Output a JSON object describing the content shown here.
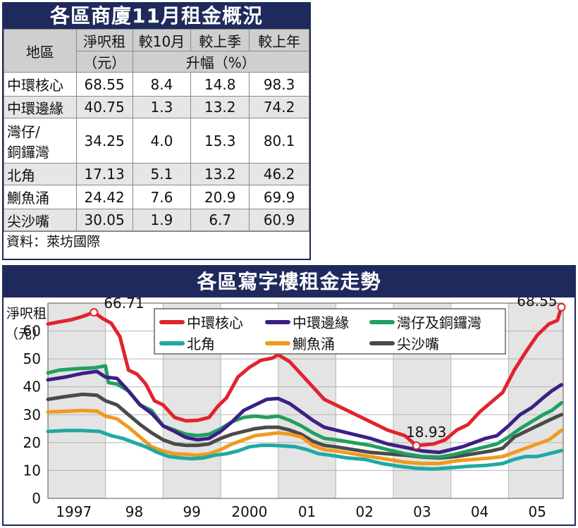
{
  "table": {
    "title": "各區商廈11月租金概況",
    "headers": {
      "area": "地區",
      "rent_line1": "淨呎租",
      "rent_line2": "（元）",
      "vs_oct": "較10月",
      "vs_quarter": "較上季",
      "vs_year": "較上年",
      "increase": "升幅（%）"
    },
    "rows": [
      {
        "area": "中環核心",
        "rent": "68.55",
        "oct": "8.4",
        "quarter": "14.8",
        "year": "98.3"
      },
      {
        "area": "中環邊緣",
        "rent": "40.75",
        "oct": "1.3",
        "quarter": "13.2",
        "year": "74.2"
      },
      {
        "area": "灣仔/",
        "area2": "銅鑼灣",
        "rent": "34.25",
        "oct": "4.0",
        "quarter": "15.3",
        "year": "80.1"
      },
      {
        "area": "北角",
        "rent": "17.13",
        "oct": "5.1",
        "quarter": "13.2",
        "year": "46.2"
      },
      {
        "area": "鰂魚涌",
        "rent": "24.42",
        "oct": "7.6",
        "quarter": "20.9",
        "year": "69.9"
      },
      {
        "area": "尖沙嘴",
        "rent": "30.05",
        "oct": "1.9",
        "quarter": "6.7",
        "year": "60.9"
      }
    ],
    "source": "資料：萊坊國際"
  },
  "chart_data": {
    "type": "line",
    "title": "各區寫字樓租金走勢",
    "ylabel": "淨呎租",
    "yunit": "（元）",
    "ylim": [
      0,
      70
    ],
    "yticks": [
      0,
      10,
      20,
      30,
      40,
      50,
      60
    ],
    "xlim": [
      1997,
      2005.95
    ],
    "xticks": [
      {
        "x": 1997.45,
        "label": "1997"
      },
      {
        "x": 1998.5,
        "label": "98"
      },
      {
        "x": 1999.5,
        "label": "99"
      },
      {
        "x": 2000.5,
        "label": "2000"
      },
      {
        "x": 2001.5,
        "label": "01"
      },
      {
        "x": 2002.5,
        "label": "02"
      },
      {
        "x": 2003.5,
        "label": "03"
      },
      {
        "x": 2004.5,
        "label": "04"
      },
      {
        "x": 2005.5,
        "label": "05"
      }
    ],
    "grid": true,
    "legend_position": "top",
    "annotations": [
      {
        "text": "66.71",
        "x": 1997.8,
        "y": 66.71,
        "series": 0
      },
      {
        "text": "18.93",
        "x": 2003.4,
        "y": 18.93,
        "series": 0
      },
      {
        "text": "68.55",
        "x": 2005.92,
        "y": 68.55,
        "series": 0
      }
    ],
    "series": [
      {
        "name": "中環核心",
        "color": "#e1232e",
        "points": [
          [
            1997.0,
            62.5
          ],
          [
            1997.2,
            63.3
          ],
          [
            1997.4,
            64.0
          ],
          [
            1997.6,
            65.2
          ],
          [
            1997.8,
            66.71
          ],
          [
            1997.95,
            64.5
          ],
          [
            1998.1,
            62.8
          ],
          [
            1998.25,
            58.0
          ],
          [
            1998.4,
            46.0
          ],
          [
            1998.55,
            44.5
          ],
          [
            1998.7,
            41.0
          ],
          [
            1998.85,
            35.0
          ],
          [
            1999.0,
            33.5
          ],
          [
            1999.2,
            29.0
          ],
          [
            1999.4,
            27.8
          ],
          [
            1999.6,
            28.0
          ],
          [
            1999.8,
            29.0
          ],
          [
            1999.95,
            33.0
          ],
          [
            2000.1,
            36.0
          ],
          [
            2000.3,
            43.5
          ],
          [
            2000.5,
            47.0
          ],
          [
            2000.7,
            49.5
          ],
          [
            2000.9,
            50.3
          ],
          [
            2001.0,
            51.5
          ],
          [
            2001.2,
            49.0
          ],
          [
            2001.4,
            44.5
          ],
          [
            2001.6,
            40.0
          ],
          [
            2001.8,
            35.5
          ],
          [
            2002.0,
            33.5
          ],
          [
            2002.3,
            30.5
          ],
          [
            2002.6,
            27.5
          ],
          [
            2002.9,
            24.5
          ],
          [
            2003.2,
            22.5
          ],
          [
            2003.4,
            18.93
          ],
          [
            2003.7,
            19.5
          ],
          [
            2003.9,
            21.0
          ],
          [
            2004.1,
            24.5
          ],
          [
            2004.3,
            26.5
          ],
          [
            2004.5,
            31.0
          ],
          [
            2004.7,
            34.5
          ],
          [
            2004.9,
            38.0
          ],
          [
            2005.1,
            46.0
          ],
          [
            2005.3,
            52.5
          ],
          [
            2005.5,
            58.5
          ],
          [
            2005.7,
            62.5
          ],
          [
            2005.85,
            63.8
          ],
          [
            2005.92,
            68.55
          ]
        ]
      },
      {
        "name": "中環邊緣",
        "color": "#3c1f86",
        "points": [
          [
            1997.0,
            42.5
          ],
          [
            1997.3,
            43.5
          ],
          [
            1997.6,
            44.8
          ],
          [
            1997.85,
            45.5
          ],
          [
            1998.0,
            43.5
          ],
          [
            1998.2,
            43.0
          ],
          [
            1998.4,
            38.5
          ],
          [
            1998.6,
            33.5
          ],
          [
            1998.8,
            30.5
          ],
          [
            1999.0,
            26.0
          ],
          [
            1999.2,
            24.0
          ],
          [
            1999.4,
            21.8
          ],
          [
            1999.6,
            21.0
          ],
          [
            1999.8,
            21.5
          ],
          [
            2000.0,
            24.0
          ],
          [
            2000.2,
            27.5
          ],
          [
            2000.4,
            31.5
          ],
          [
            2000.6,
            33.5
          ],
          [
            2000.8,
            35.5
          ],
          [
            2001.0,
            35.8
          ],
          [
            2001.2,
            34.0
          ],
          [
            2001.4,
            31.0
          ],
          [
            2001.6,
            28.0
          ],
          [
            2001.8,
            25.5
          ],
          [
            2002.0,
            24.5
          ],
          [
            2002.3,
            23.0
          ],
          [
            2002.6,
            21.5
          ],
          [
            2002.9,
            19.5
          ],
          [
            2003.2,
            18.3
          ],
          [
            2003.5,
            17.0
          ],
          [
            2003.8,
            16.5
          ],
          [
            2004.0,
            17.5
          ],
          [
            2004.2,
            18.5
          ],
          [
            2004.4,
            20.0
          ],
          [
            2004.6,
            21.5
          ],
          [
            2004.8,
            22.5
          ],
          [
            2005.0,
            26.0
          ],
          [
            2005.2,
            30.0
          ],
          [
            2005.4,
            32.5
          ],
          [
            2005.6,
            36.0
          ],
          [
            2005.75,
            38.5
          ],
          [
            2005.92,
            40.75
          ]
        ]
      },
      {
        "name": "灣仔及銅鑼灣",
        "color": "#20a060",
        "points": [
          [
            1997.0,
            45.0
          ],
          [
            1997.2,
            46.0
          ],
          [
            1997.5,
            46.5
          ],
          [
            1997.8,
            46.8
          ],
          [
            1998.0,
            47.5
          ],
          [
            1998.05,
            41.5
          ],
          [
            1998.2,
            41.0
          ],
          [
            1998.4,
            38.5
          ],
          [
            1998.6,
            33.5
          ],
          [
            1998.8,
            31.5
          ],
          [
            1999.0,
            26.0
          ],
          [
            1999.2,
            24.5
          ],
          [
            1999.4,
            23.0
          ],
          [
            1999.6,
            22.5
          ],
          [
            1999.8,
            23.0
          ],
          [
            2000.0,
            25.0
          ],
          [
            2000.2,
            27.5
          ],
          [
            2000.4,
            29.0
          ],
          [
            2000.6,
            29.5
          ],
          [
            2000.8,
            29.0
          ],
          [
            2001.0,
            29.5
          ],
          [
            2001.2,
            28.0
          ],
          [
            2001.4,
            26.0
          ],
          [
            2001.6,
            23.5
          ],
          [
            2001.8,
            21.5
          ],
          [
            2002.0,
            21.0
          ],
          [
            2002.3,
            20.0
          ],
          [
            2002.6,
            19.0
          ],
          [
            2002.9,
            17.5
          ],
          [
            2003.2,
            16.0
          ],
          [
            2003.5,
            15.0
          ],
          [
            2003.8,
            14.8
          ],
          [
            2004.0,
            15.5
          ],
          [
            2004.2,
            16.5
          ],
          [
            2004.4,
            17.5
          ],
          [
            2004.6,
            18.5
          ],
          [
            2004.8,
            19.5
          ],
          [
            2005.0,
            22.0
          ],
          [
            2005.2,
            25.0
          ],
          [
            2005.4,
            27.5
          ],
          [
            2005.6,
            30.0
          ],
          [
            2005.75,
            31.5
          ],
          [
            2005.92,
            34.25
          ]
        ]
      },
      {
        "name": "北角",
        "color": "#1fa9a3",
        "points": [
          [
            1997.0,
            24.0
          ],
          [
            1997.3,
            24.3
          ],
          [
            1997.6,
            24.3
          ],
          [
            1997.9,
            24.0
          ],
          [
            1998.1,
            22.5
          ],
          [
            1998.3,
            21.5
          ],
          [
            1998.5,
            20.0
          ],
          [
            1998.7,
            18.5
          ],
          [
            1998.9,
            16.5
          ],
          [
            1999.1,
            15.0
          ],
          [
            1999.3,
            14.5
          ],
          [
            1999.5,
            14.2
          ],
          [
            1999.7,
            14.5
          ],
          [
            1999.9,
            15.5
          ],
          [
            2000.1,
            16.0
          ],
          [
            2000.3,
            17.0
          ],
          [
            2000.5,
            18.5
          ],
          [
            2000.7,
            19.0
          ],
          [
            2000.9,
            19.0
          ],
          [
            2001.1,
            18.8
          ],
          [
            2001.3,
            18.5
          ],
          [
            2001.5,
            17.5
          ],
          [
            2001.7,
            16.0
          ],
          [
            2001.9,
            15.5
          ],
          [
            2002.2,
            14.5
          ],
          [
            2002.5,
            14.0
          ],
          [
            2002.8,
            12.5
          ],
          [
            2003.1,
            11.5
          ],
          [
            2003.4,
            10.8
          ],
          [
            2003.7,
            10.5
          ],
          [
            2004.0,
            11.0
          ],
          [
            2004.3,
            11.5
          ],
          [
            2004.6,
            11.8
          ],
          [
            2004.9,
            12.5
          ],
          [
            2005.1,
            14.0
          ],
          [
            2005.3,
            15.0
          ],
          [
            2005.5,
            15.0
          ],
          [
            2005.7,
            16.0
          ],
          [
            2005.92,
            17.13
          ]
        ]
      },
      {
        "name": "鰂魚涌",
        "color": "#f09a1e",
        "points": [
          [
            1997.0,
            31.0
          ],
          [
            1997.3,
            31.2
          ],
          [
            1997.6,
            31.5
          ],
          [
            1997.85,
            31.3
          ],
          [
            1998.0,
            29.5
          ],
          [
            1998.2,
            28.5
          ],
          [
            1998.4,
            25.5
          ],
          [
            1998.6,
            22.0
          ],
          [
            1998.8,
            18.5
          ],
          [
            1999.0,
            17.0
          ],
          [
            1999.2,
            16.0
          ],
          [
            1999.4,
            15.8
          ],
          [
            1999.6,
            15.5
          ],
          [
            1999.8,
            16.0
          ],
          [
            2000.0,
            17.5
          ],
          [
            2000.2,
            19.5
          ],
          [
            2000.4,
            21.0
          ],
          [
            2000.6,
            22.5
          ],
          [
            2000.8,
            23.0
          ],
          [
            2001.0,
            23.5
          ],
          [
            2001.2,
            23.0
          ],
          [
            2001.4,
            22.0
          ],
          [
            2001.6,
            19.0
          ],
          [
            2001.8,
            17.5
          ],
          [
            2002.0,
            17.0
          ],
          [
            2002.3,
            16.0
          ],
          [
            2002.6,
            15.0
          ],
          [
            2002.9,
            14.0
          ],
          [
            2003.2,
            13.0
          ],
          [
            2003.5,
            12.5
          ],
          [
            2003.8,
            12.5
          ],
          [
            2004.1,
            13.5
          ],
          [
            2004.4,
            14.0
          ],
          [
            2004.7,
            14.5
          ],
          [
            2004.9,
            15.0
          ],
          [
            2005.1,
            16.5
          ],
          [
            2005.3,
            18.0
          ],
          [
            2005.5,
            19.5
          ],
          [
            2005.7,
            21.0
          ],
          [
            2005.8,
            22.5
          ],
          [
            2005.92,
            24.42
          ]
        ]
      },
      {
        "name": "尖沙嘴",
        "color": "#4a4a4a",
        "points": [
          [
            1997.0,
            35.5
          ],
          [
            1997.3,
            36.5
          ],
          [
            1997.6,
            37.3
          ],
          [
            1997.85,
            37.0
          ],
          [
            1998.0,
            35.0
          ],
          [
            1998.2,
            33.5
          ],
          [
            1998.4,
            30.0
          ],
          [
            1998.6,
            26.5
          ],
          [
            1998.8,
            23.5
          ],
          [
            1999.0,
            21.0
          ],
          [
            1999.2,
            19.5
          ],
          [
            1999.4,
            19.0
          ],
          [
            1999.6,
            19.0
          ],
          [
            1999.8,
            19.5
          ],
          [
            2000.0,
            21.5
          ],
          [
            2000.2,
            23.0
          ],
          [
            2000.4,
            24.0
          ],
          [
            2000.6,
            25.0
          ],
          [
            2000.8,
            25.5
          ],
          [
            2001.0,
            25.5
          ],
          [
            2001.2,
            24.5
          ],
          [
            2001.4,
            23.0
          ],
          [
            2001.6,
            20.5
          ],
          [
            2001.8,
            19.0
          ],
          [
            2002.0,
            18.5
          ],
          [
            2002.3,
            17.5
          ],
          [
            2002.6,
            16.5
          ],
          [
            2002.9,
            16.0
          ],
          [
            2003.2,
            15.5
          ],
          [
            2003.5,
            14.8
          ],
          [
            2003.8,
            14.5
          ],
          [
            2004.1,
            15.0
          ],
          [
            2004.4,
            16.0
          ],
          [
            2004.7,
            17.0
          ],
          [
            2004.9,
            18.0
          ],
          [
            2005.1,
            22.0
          ],
          [
            2005.3,
            24.0
          ],
          [
            2005.5,
            26.0
          ],
          [
            2005.7,
            28.0
          ],
          [
            2005.92,
            30.05
          ]
        ]
      }
    ]
  }
}
